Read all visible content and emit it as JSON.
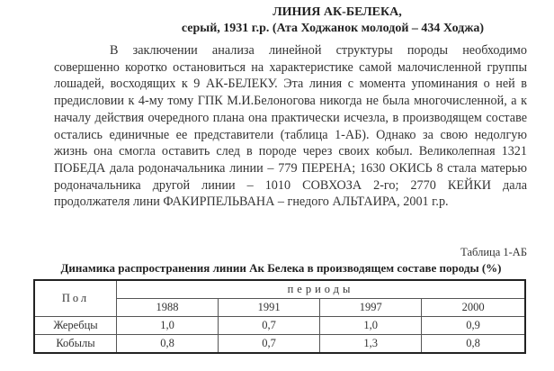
{
  "heading": {
    "title": "ЛИНИЯ   АК-БЕЛЕКА,",
    "subtitle": "серый, 1931 г.р. (Ата Ходжанок молодой – 434 Ходжа)"
  },
  "paragraph": "В заключении анализа линейной структуры породы необходимо совершенно коротко остановиться на характеристике самой малочисленной группы лошадей, восходящих к 9 АК-БЕЛЕКУ. Эта линия с момента упоминания о ней в предисловии к 4-му тому ГПК М.И.Белоногова никогда не была многочисленной, а к началу действия очередного плана она практически исчезла, в производящем составе остались единичные ее представители (таблица 1-АБ). Однако за свою недолгую жизнь она смогла оставить след в породе через своих кобыл. Великолепная 1321 ПОБЕДА дала родоначальника линии – 779 ПЕРЕНА; 1630 ОКИСЬ 8 стала матерью родоначальника другой линии – 1010 СОВХОЗА 2-го; 2770 КЕЙКИ дала продолжателя лини ФАКИРПЕЛЬВАНА – гнедого АЛЬТАИРА, 2001 г.р.",
  "table": {
    "label": "Таблица 1-АБ",
    "caption": "Динамика распространения линии Ак Белека в производящем составе породы (%)",
    "header_sex": "Пол",
    "header_periods": "периоды",
    "years": [
      "1988",
      "1991",
      "1997",
      "2000"
    ],
    "rows": [
      {
        "label": "Жеребцы",
        "values": [
          "1,0",
          "0,7",
          "1,0",
          "0,9"
        ]
      },
      {
        "label": "Кобылы",
        "values": [
          "0,8",
          "0,7",
          "1,3",
          "0,8"
        ]
      }
    ]
  }
}
